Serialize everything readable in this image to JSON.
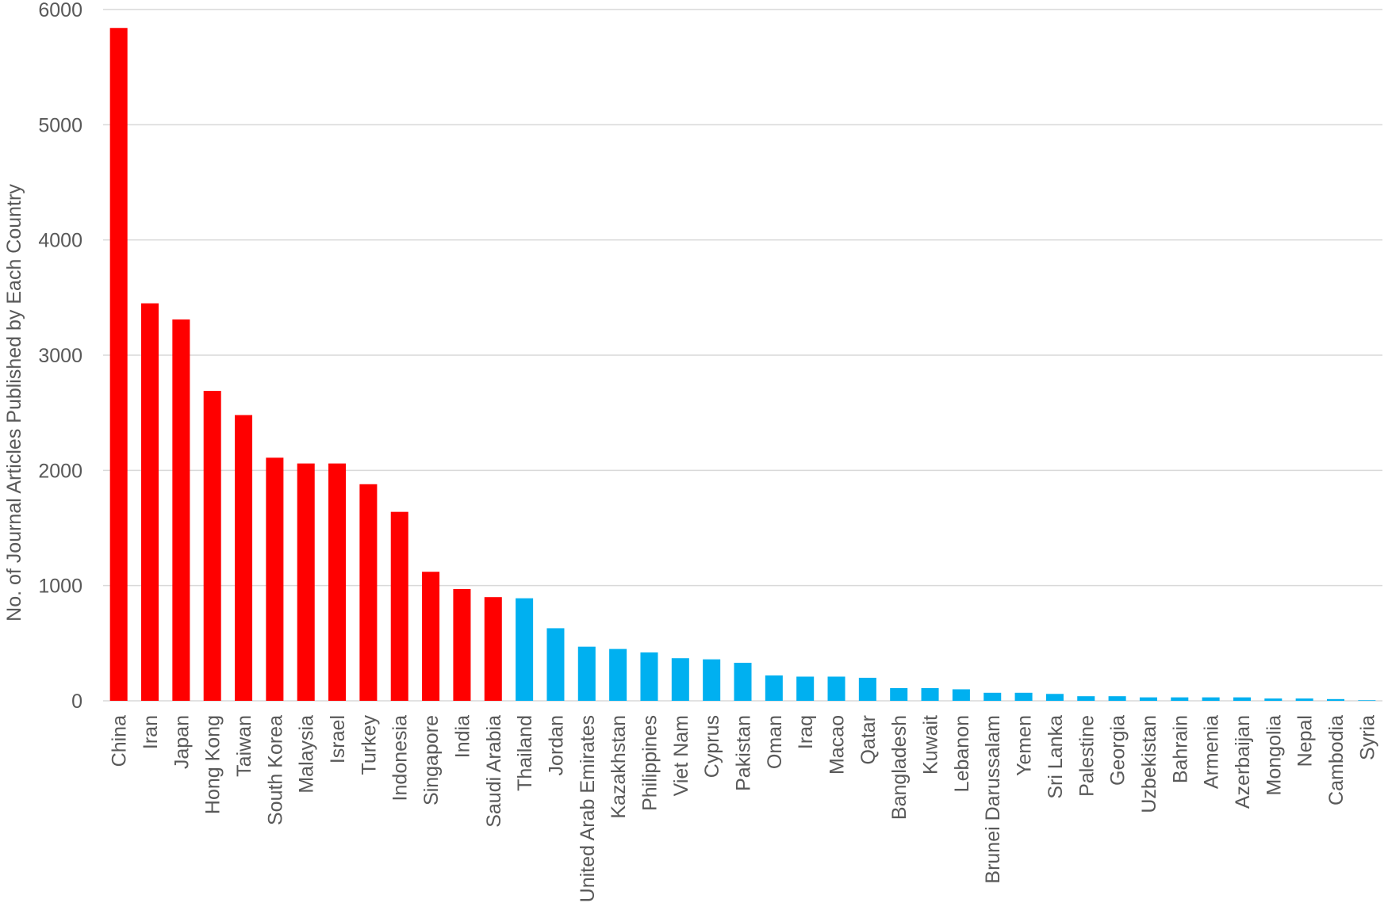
{
  "chart_data": {
    "type": "bar",
    "title": "",
    "xlabel": "",
    "ylabel": "No. of Journal Articles Published by Each Country",
    "ylim": [
      0,
      6000
    ],
    "yticks": [
      0,
      1000,
      2000,
      3000,
      4000,
      5000,
      6000
    ],
    "grid": true,
    "legend": "none",
    "colors": {
      "highlight": "#ff0000",
      "other": "#00b0f0",
      "grid": "#d9d9d9",
      "text": "#595959"
    },
    "categories": [
      "China",
      "Iran",
      "Japan",
      "Hong Kong",
      "Taiwan",
      "South Korea",
      "Malaysia",
      "Israel",
      "Turkey",
      "Indonesia",
      "Singapore",
      "India",
      "Saudi Arabia",
      "Thailand",
      "Jordan",
      "United Arab Emirates",
      "Kazakhstan",
      "Philippines",
      "Viet Nam",
      "Cyprus",
      "Pakistan",
      "Oman",
      "Iraq",
      "Macao",
      "Qatar",
      "Bangladesh",
      "Kuwait",
      "Lebanon",
      "Brunei Darussalam",
      "Yemen",
      "Sri Lanka",
      "Palestine",
      "Georgia",
      "Uzbekistan",
      "Bahrain",
      "Armenia",
      "Azerbaijan",
      "Mongolia",
      "Nepal",
      "Cambodia",
      "Syria"
    ],
    "values": [
      5840,
      3450,
      3310,
      2690,
      2480,
      2110,
      2060,
      2060,
      1880,
      1640,
      1120,
      970,
      900,
      890,
      630,
      470,
      450,
      420,
      370,
      360,
      330,
      220,
      210,
      210,
      200,
      110,
      110,
      100,
      70,
      70,
      60,
      40,
      40,
      30,
      30,
      30,
      30,
      20,
      20,
      15,
      5
    ],
    "highlight_count": 13
  }
}
